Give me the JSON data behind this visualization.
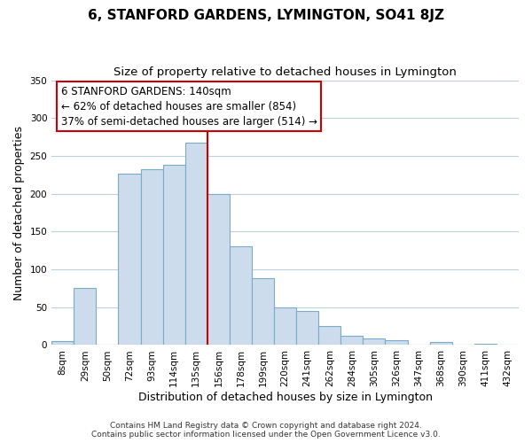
{
  "title": "6, STANFORD GARDENS, LYMINGTON, SO41 8JZ",
  "subtitle": "Size of property relative to detached houses in Lymington",
  "xlabel": "Distribution of detached houses by size in Lymington",
  "ylabel": "Number of detached properties",
  "bar_labels": [
    "8sqm",
    "29sqm",
    "50sqm",
    "72sqm",
    "93sqm",
    "114sqm",
    "135sqm",
    "156sqm",
    "178sqm",
    "199sqm",
    "220sqm",
    "241sqm",
    "262sqm",
    "284sqm",
    "305sqm",
    "326sqm",
    "347sqm",
    "368sqm",
    "390sqm",
    "411sqm",
    "432sqm"
  ],
  "bar_heights": [
    5,
    75,
    0,
    226,
    232,
    238,
    268,
    200,
    130,
    88,
    50,
    45,
    25,
    12,
    9,
    6,
    0,
    4,
    0,
    2,
    0
  ],
  "bar_color": "#ccdcec",
  "bar_edge_color": "#7aaac8",
  "vline_x": 6.5,
  "vline_color": "#cc0000",
  "ylim": [
    0,
    350
  ],
  "yticks": [
    0,
    50,
    100,
    150,
    200,
    250,
    300,
    350
  ],
  "annotation_line0": "6 STANFORD GARDENS: 140sqm",
  "annotation_line1": "← 62% of detached houses are smaller (854)",
  "annotation_line2": "37% of semi-detached houses are larger (514) →",
  "footer1": "Contains HM Land Registry data © Crown copyright and database right 2024.",
  "footer2": "Contains public sector information licensed under the Open Government Licence v3.0.",
  "title_fontsize": 11,
  "subtitle_fontsize": 9.5,
  "annotation_fontsize": 8.5,
  "axis_label_fontsize": 9,
  "tick_fontsize": 7.5,
  "footer_fontsize": 6.5,
  "background_color": "#ffffff",
  "grid_color": "#c0cfe0"
}
